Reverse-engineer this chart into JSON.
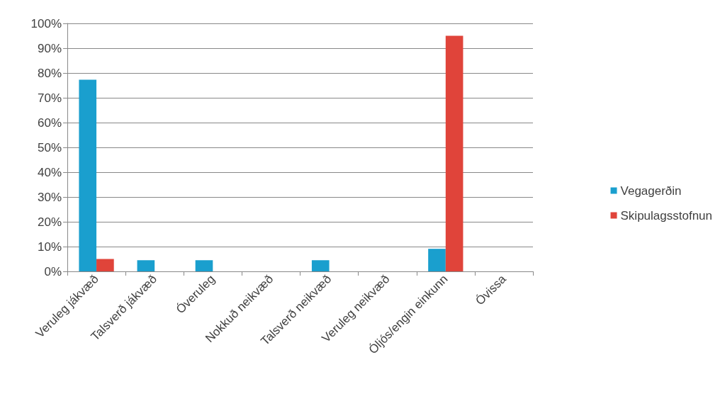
{
  "chart_data": {
    "type": "bar",
    "categories": [
      "Veruleg jákvæð",
      "Talsverð jákvæð",
      "Óveruleg",
      "Nokkuð neikvæð",
      "Talsverð neikvæð",
      "Veruleg neikvæð",
      "Óljós/engin einkunn",
      "Óvissa"
    ],
    "series": [
      {
        "name": "Vegagerðin",
        "color": "#1a9fce",
        "values": [
          77.3,
          4.5,
          4.5,
          0,
          4.5,
          0,
          9.1,
          0
        ]
      },
      {
        "name": "Skipulagsstofnun",
        "color": "#e0443a",
        "values": [
          5,
          0,
          0,
          0,
          0,
          0,
          95,
          0
        ]
      }
    ],
    "ylim": [
      0,
      100
    ],
    "yticks": [
      {
        "value": 0,
        "label": "0%"
      },
      {
        "value": 10,
        "label": "10%"
      },
      {
        "value": 20,
        "label": "20%"
      },
      {
        "value": 30,
        "label": "30%"
      },
      {
        "value": 40,
        "label": "40%"
      },
      {
        "value": 50,
        "label": "50%"
      },
      {
        "value": 60,
        "label": "60%"
      },
      {
        "value": 70,
        "label": "70%"
      },
      {
        "value": 80,
        "label": "80%"
      },
      {
        "value": 90,
        "label": "90%"
      },
      {
        "value": 100,
        "label": "100%"
      }
    ],
    "grid": "y",
    "legend": "right"
  }
}
